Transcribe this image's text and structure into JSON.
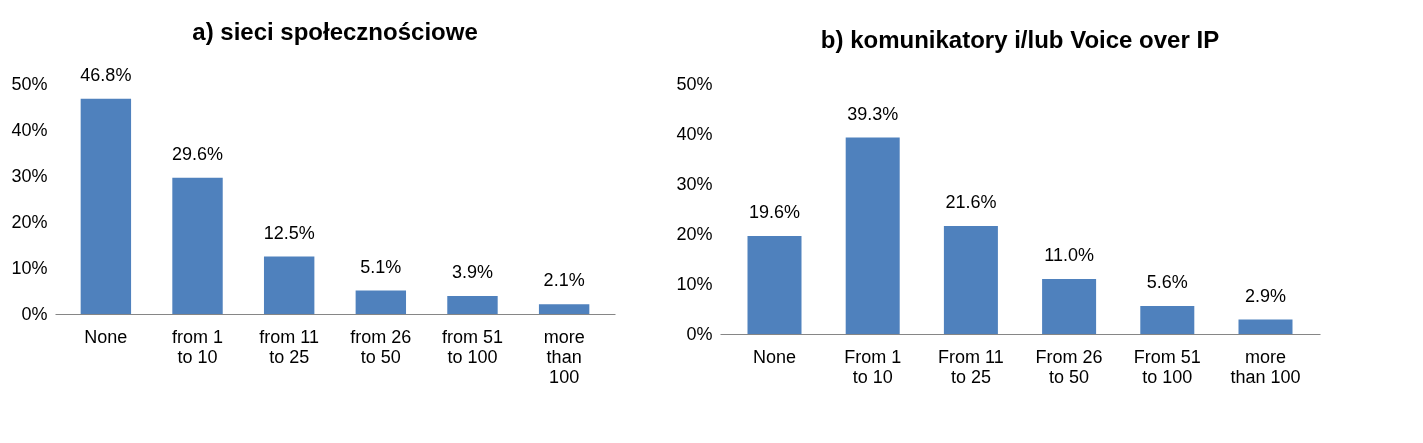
{
  "chart_data": [
    {
      "type": "bar",
      "title": "a) sieci społecznościowe",
      "categories": [
        "None",
        "from 1 to 10",
        "from 11 to 25",
        "from 26 to 50",
        "from 51 to 100",
        "more than 100"
      ],
      "values": [
        46.8,
        29.6,
        12.5,
        5.1,
        3.9,
        2.1
      ],
      "value_labels": [
        "46.8%",
        "29.6%",
        "12.5%",
        "5.1%",
        "3.9%",
        "2.1%"
      ],
      "color": "#4f81bd",
      "ylim": [
        0,
        50
      ],
      "yticks": [
        {
          "value": 0,
          "label": "0%"
        },
        {
          "value": 10,
          "label": "10%"
        },
        {
          "value": 20,
          "label": "20%"
        },
        {
          "value": 30,
          "label": "30%"
        },
        {
          "value": 40,
          "label": "40%"
        },
        {
          "value": 50,
          "label": "50%"
        }
      ],
      "grid": false
    },
    {
      "type": "bar",
      "title": "b) komunikatory i/lub Voice over IP",
      "categories": [
        "None",
        "From 1 to 10",
        "From 11 to 25",
        "From 26 to 50",
        "From 51 to 100",
        "more than 100"
      ],
      "values": [
        19.6,
        39.3,
        21.6,
        11.0,
        5.6,
        2.9
      ],
      "value_labels": [
        "19.6%",
        "39.3%",
        "21.6%",
        "11.0%",
        "5.6%",
        "2.9%"
      ],
      "color": "#4f81bd",
      "ylim": [
        0,
        50
      ],
      "yticks": [
        {
          "value": 0,
          "label": "0%"
        },
        {
          "value": 10,
          "label": "10%"
        },
        {
          "value": 20,
          "label": "20%"
        },
        {
          "value": 30,
          "label": "30%"
        },
        {
          "value": 40,
          "label": "40%"
        },
        {
          "value": 50,
          "label": "50%"
        }
      ],
      "grid": false
    }
  ]
}
